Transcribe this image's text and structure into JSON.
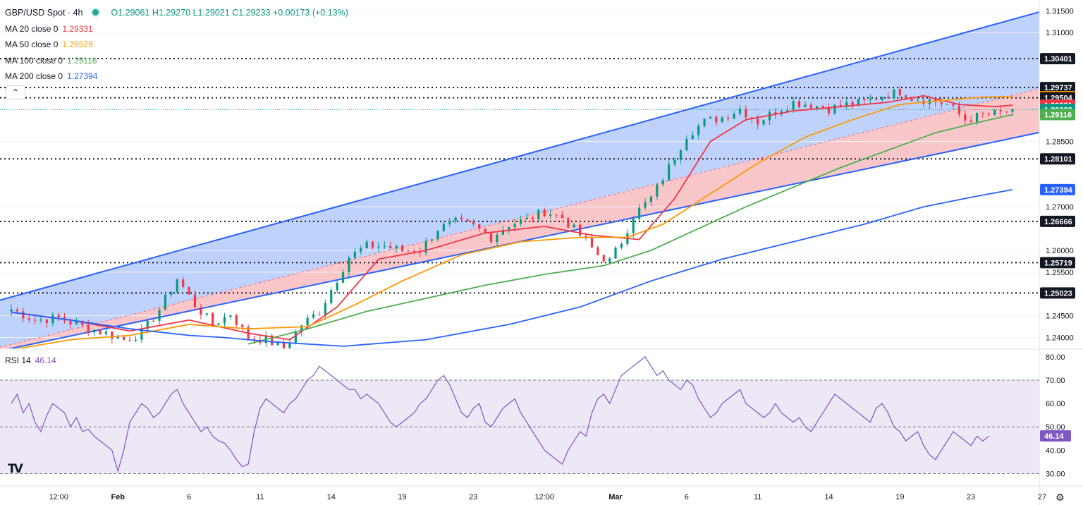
{
  "header": {
    "symbol": "GBP/USD Spot",
    "interval": "4h",
    "open": "O1.29061",
    "high": "H1.29270",
    "low": "L1.29021",
    "close": "C1.29233",
    "change": "+0.00173 (+0.13%)"
  },
  "indicators": [
    {
      "label": "MA 20 close 0",
      "value": "1.29331",
      "color": "#f23645"
    },
    {
      "label": "MA 50 close 0",
      "value": "1.29529",
      "color": "#ff9800"
    },
    {
      "label": "MA 100 close 0",
      "value": "1.29116",
      "color": "#4caf50"
    },
    {
      "label": "MA 200 close 0",
      "value": "1.27394",
      "color": "#2962ff"
    }
  ],
  "rsi_label": {
    "label": "RSI 14",
    "value": "46.14"
  },
  "colors": {
    "up": "#089981",
    "down": "#f23645",
    "channel_upper": "#bcd0fb",
    "channel_lower": "#f9c3c7",
    "channel_line": "#2962ff",
    "rsi_line": "#7e57c2",
    "rsi_band": "#ede7f6"
  },
  "icons": {
    "collapse": "chevron-up-icon",
    "logo": "tradingview-logo",
    "settings": "gear-icon"
  },
  "chart_data": [
    {
      "type": "candlestick",
      "title": "GBP/USD Spot · 4h",
      "ylim": [
        1.2375,
        1.3165
      ],
      "price_ticks": [
        "1.31500",
        "1.31000",
        "1.28500",
        "1.27000",
        "1.26000",
        "1.25500",
        "1.24500",
        "1.24000"
      ],
      "date_ticks": [
        {
          "label": "12:00",
          "i": 8
        },
        {
          "label": "Feb",
          "i": 18
        },
        {
          "label": "6",
          "i": 30
        },
        {
          "label": "11",
          "i": 42
        },
        {
          "label": "14",
          "i": 54
        },
        {
          "label": "19",
          "i": 66
        },
        {
          "label": "23",
          "i": 78
        },
        {
          "label": "12:00",
          "i": 90
        },
        {
          "label": "Mar",
          "i": 102
        },
        {
          "label": "6",
          "i": 114
        },
        {
          "label": "11",
          "i": 126
        },
        {
          "label": "14",
          "i": 138
        },
        {
          "label": "19",
          "i": 150
        },
        {
          "label": "23",
          "i": 162
        },
        {
          "label": "27",
          "i": 174
        }
      ],
      "horizontal_levels": [
        {
          "value": 1.30401,
          "label": "1.30401",
          "bg": "#131722"
        },
        {
          "value": 1.29504,
          "label": "1.29504",
          "bg": "#131722"
        },
        {
          "value": 1.28101,
          "label": "1.28101",
          "bg": "#131722"
        },
        {
          "value": 1.26666,
          "label": "1.26666",
          "bg": "#131722"
        },
        {
          "value": 1.25719,
          "label": "1.25719",
          "bg": "#131722"
        },
        {
          "value": 1.25023,
          "label": "1.25023",
          "bg": "#131722"
        }
      ],
      "price_tags": [
        {
          "value": 1.29737,
          "label": "1.29737",
          "bg": "#131722"
        },
        {
          "value": 1.29529,
          "label": "1.29529",
          "bg": "#ff9800"
        },
        {
          "value": 1.29331,
          "label": "1.29331",
          "bg": "#f23645"
        },
        {
          "value": 1.29233,
          "label": "1.29233",
          "bg": "#089981"
        },
        {
          "value": 1.29116,
          "label": "1.29116",
          "bg": "#4caf50"
        },
        {
          "value": 1.27394,
          "label": "1.27394",
          "bg": "#2962ff"
        }
      ],
      "channel": {
        "upper": {
          "i0": 0,
          "v0": 1.2493,
          "i1": 174,
          "v1": 1.3149
        },
        "mid": {
          "i0": 0,
          "v0": 1.2384,
          "i1": 174,
          "v1": 1.2973
        },
        "lower": {
          "i0": 0,
          "v0": 1.2375,
          "i1": 174,
          "v1": 1.2872
        }
      },
      "ohlc_anchors": [
        [
          0,
          1.2465
        ],
        [
          4,
          1.244
        ],
        [
          8,
          1.2445
        ],
        [
          12,
          1.2425
        ],
        [
          16,
          1.241
        ],
        [
          19,
          1.2395
        ],
        [
          22,
          1.241
        ],
        [
          25,
          1.2465
        ],
        [
          28,
          1.2535
        ],
        [
          31,
          1.2475
        ],
        [
          34,
          1.243
        ],
        [
          37,
          1.2455
        ],
        [
          40,
          1.24
        ],
        [
          43,
          1.2395
        ],
        [
          46,
          1.2375
        ],
        [
          49,
          1.243
        ],
        [
          52,
          1.246
        ],
        [
          54,
          1.251
        ],
        [
          57,
          1.2585
        ],
        [
          60,
          1.261
        ],
        [
          63,
          1.261
        ],
        [
          66,
          1.26
        ],
        [
          69,
          1.26
        ],
        [
          72,
          1.265
        ],
        [
          75,
          1.2665
        ],
        [
          78,
          1.2655
        ],
        [
          81,
          1.263
        ],
        [
          84,
          1.266
        ],
        [
          87,
          1.267
        ],
        [
          90,
          1.269
        ],
        [
          93,
          1.2675
        ],
        [
          96,
          1.2635
        ],
        [
          99,
          1.259
        ],
        [
          101,
          1.2575
        ],
        [
          103,
          1.262
        ],
        [
          105,
          1.268
        ],
        [
          108,
          1.272
        ],
        [
          111,
          1.279
        ],
        [
          114,
          1.2865
        ],
        [
          117,
          1.2895
        ],
        [
          120,
          1.2905
        ],
        [
          123,
          1.2925
        ],
        [
          126,
          1.2895
        ],
        [
          129,
          1.292
        ],
        [
          132,
          1.294
        ],
        [
          135,
          1.2935
        ],
        [
          138,
          1.2925
        ],
        [
          141,
          1.2935
        ],
        [
          144,
          1.294
        ],
        [
          147,
          1.2955
        ],
        [
          150,
          1.2965
        ],
        [
          152,
          1.295
        ],
        [
          155,
          1.2945
        ],
        [
          158,
          1.2935
        ],
        [
          161,
          1.29
        ],
        [
          164,
          1.291
        ],
        [
          167,
          1.2915
        ],
        [
          169,
          1.2923
        ]
      ],
      "ma_series": [
        {
          "name": "MA 20",
          "color": "#f23645",
          "points": [
            [
              0,
              1.2458
            ],
            [
              10,
              1.244
            ],
            [
              20,
              1.2415
            ],
            [
              30,
              1.244
            ],
            [
              40,
              1.241
            ],
            [
              47,
              1.2395
            ],
            [
              55,
              1.247
            ],
            [
              62,
              1.258
            ],
            [
              70,
              1.26
            ],
            [
              80,
              1.264
            ],
            [
              90,
              1.2655
            ],
            [
              98,
              1.2635
            ],
            [
              106,
              1.2625
            ],
            [
              112,
              1.272
            ],
            [
              118,
              1.285
            ],
            [
              124,
              1.29
            ],
            [
              132,
              1.292
            ],
            [
              140,
              1.293
            ],
            [
              148,
              1.294
            ],
            [
              154,
              1.2955
            ],
            [
              160,
              1.2935
            ],
            [
              166,
              1.293
            ],
            [
              169,
              1.29331
            ]
          ]
        },
        {
          "name": "MA 50",
          "color": "#ff9800",
          "points": [
            [
              0,
              1.2372
            ],
            [
              10,
              1.2395
            ],
            [
              20,
              1.2405
            ],
            [
              30,
              1.243
            ],
            [
              40,
              1.242
            ],
            [
              50,
              1.2425
            ],
            [
              58,
              1.2475
            ],
            [
              66,
              1.253
            ],
            [
              76,
              1.259
            ],
            [
              86,
              1.262
            ],
            [
              96,
              1.263
            ],
            [
              104,
              1.263
            ],
            [
              110,
              1.266
            ],
            [
              118,
              1.273
            ],
            [
              126,
              1.28
            ],
            [
              134,
              1.286
            ],
            [
              142,
              1.29
            ],
            [
              150,
              1.2935
            ],
            [
              158,
              1.2945
            ],
            [
              164,
              1.2952
            ],
            [
              169,
              1.29529
            ]
          ]
        },
        {
          "name": "MA 100",
          "color": "#4caf50",
          "points": [
            [
              40,
              1.2385
            ],
            [
              50,
              1.242
            ],
            [
              60,
              1.246
            ],
            [
              70,
              1.249
            ],
            [
              80,
              1.252
            ],
            [
              90,
              1.2545
            ],
            [
              100,
              1.2565
            ],
            [
              108,
              1.26
            ],
            [
              116,
              1.265
            ],
            [
              124,
              1.27
            ],
            [
              132,
              1.2745
            ],
            [
              140,
              1.279
            ],
            [
              148,
              1.283
            ],
            [
              156,
              1.287
            ],
            [
              162,
              1.289
            ],
            [
              169,
              1.29116
            ]
          ]
        },
        {
          "name": "MA 200",
          "color": "#2962ff",
          "points": [
            [
              0,
              1.2458
            ],
            [
              10,
              1.244
            ],
            [
              20,
              1.242
            ],
            [
              30,
              1.2405
            ],
            [
              36,
              1.24
            ],
            [
              44,
              1.239
            ],
            [
              56,
              1.238
            ],
            [
              70,
              1.2395
            ],
            [
              84,
              1.243
            ],
            [
              96,
              1.247
            ],
            [
              108,
              1.253
            ],
            [
              120,
              1.258
            ],
            [
              132,
              1.262
            ],
            [
              144,
              1.266
            ],
            [
              154,
              1.27
            ],
            [
              162,
              1.2722
            ],
            [
              169,
              1.27394
            ]
          ]
        }
      ]
    },
    {
      "type": "line",
      "title": "RSI 14",
      "ylim": [
        25,
        83
      ],
      "y_ticks": [
        "80.00",
        "70.00",
        "60.00",
        "50.00",
        "40.00",
        "30.00"
      ],
      "band": [
        30,
        70
      ],
      "mid_line": 50,
      "current": {
        "value": 46.14,
        "label": "46.14"
      },
      "series": [
        {
          "values": [
            60,
            64,
            56,
            60,
            52,
            48,
            55,
            60,
            58,
            56,
            50,
            54,
            48,
            49,
            46,
            44,
            42,
            40,
            31,
            40,
            52,
            56,
            60,
            58,
            54,
            56,
            60,
            64,
            66,
            60,
            56,
            52,
            48,
            50,
            46,
            44,
            43,
            40,
            36,
            33,
            34,
            48,
            58,
            62,
            60,
            58,
            56,
            60,
            62,
            66,
            70,
            72,
            76,
            74,
            72,
            70,
            68,
            66,
            66,
            62,
            64,
            62,
            60,
            56,
            52,
            50,
            52,
            54,
            56,
            60,
            62,
            66,
            70,
            72,
            68,
            62,
            56,
            54,
            58,
            60,
            52,
            50,
            54,
            58,
            60,
            62,
            56,
            52,
            48,
            44,
            40,
            38,
            36,
            34,
            40,
            44,
            48,
            46,
            56,
            62,
            64,
            60,
            66,
            72,
            74,
            76,
            78,
            80,
            76,
            72,
            74,
            70,
            68,
            66,
            70,
            68,
            62,
            58,
            54,
            56,
            60,
            62,
            64,
            66,
            60,
            58,
            56,
            54,
            56,
            60,
            56,
            54,
            52,
            54,
            50,
            48,
            52,
            56,
            60,
            64,
            62,
            60,
            58,
            56,
            54,
            52,
            58,
            60,
            56,
            50,
            48,
            44,
            46,
            48,
            42,
            38,
            36,
            40,
            44,
            48,
            46,
            44,
            42,
            46,
            44,
            46
          ]
        }
      ]
    }
  ]
}
